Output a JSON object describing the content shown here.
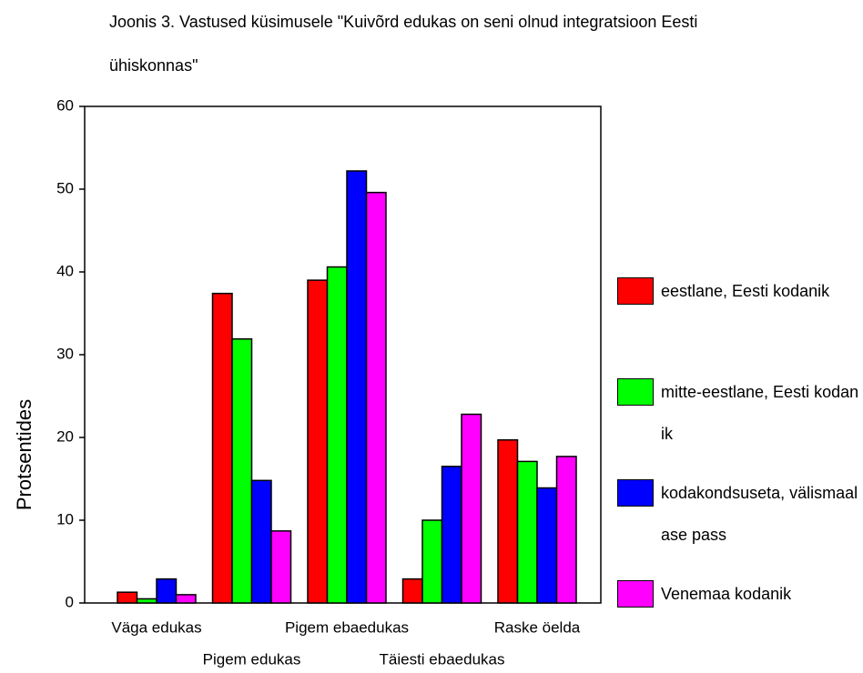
{
  "chart_data": {
    "type": "bar",
    "title": "Joonis 3. Vastused küsimusele \"Kuivõrd edukas on seni olnud integratsioon Eesti ühiskonnas\"",
    "y_label": "Protsentides",
    "categories": [
      "Väga edukas",
      "Pigem edukas",
      "Pigem ebaedukas",
      "Täiesti ebaedukas",
      "Raske öelda"
    ],
    "series": [
      {
        "name": "eestlane, Eesti kodanik",
        "color": "#ff0000",
        "values": [
          1.3,
          37.4,
          39.0,
          2.9,
          19.7
        ]
      },
      {
        "name": "mitte-eestlane, Eesti kodanik",
        "color": "#00ff00",
        "values": [
          0.5,
          31.9,
          40.6,
          10.0,
          17.1
        ]
      },
      {
        "name": "kodakondsuseta, välismaalase pass",
        "color": "#0000ff",
        "values": [
          2.9,
          14.8,
          52.2,
          16.5,
          13.9
        ]
      },
      {
        "name": "Venemaa kodanik",
        "color": "#ff00ff",
        "values": [
          1.0,
          8.7,
          49.6,
          22.8,
          17.7
        ]
      }
    ],
    "ylim": [
      0,
      60
    ],
    "yticks": [
      0,
      10,
      20,
      30,
      40,
      50,
      60
    ],
    "legend": "right"
  }
}
